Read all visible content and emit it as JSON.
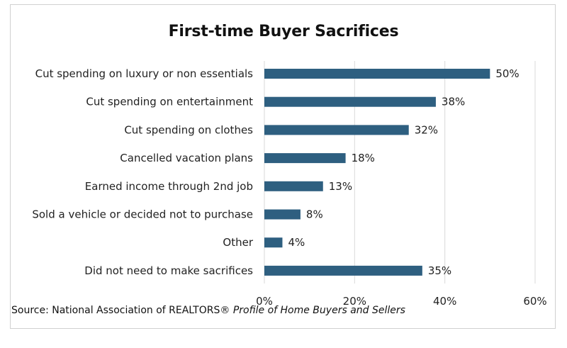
{
  "chart_data": {
    "type": "bar",
    "orientation": "horizontal",
    "title": "First-time Buyer Sacrifices",
    "categories": [
      "Cut spending on luxury or non essentials",
      "Cut spending on entertainment",
      "Cut spending on clothes",
      "Cancelled vacation plans",
      "Earned income through 2nd job",
      "Sold a vehicle or decided not to purchase",
      "Other",
      "Did not need to make sacrifices"
    ],
    "values": [
      50,
      38,
      32,
      18,
      13,
      8,
      4,
      35
    ],
    "value_labels": [
      "50%",
      "38%",
      "32%",
      "18%",
      "13%",
      "8%",
      "4%",
      "35%"
    ],
    "x_ticks": [
      0,
      20,
      40,
      60
    ],
    "x_tick_labels": [
      "0%",
      "20%",
      "40%",
      "60%"
    ],
    "xlim": [
      0,
      60
    ],
    "grid": "vertical",
    "bar_color": "#2e5f80",
    "gridline_color": "#d9d9d9"
  },
  "source": {
    "prefix": "Source: National Association of REALTORS® ",
    "publication": "Profile of Home Buyers and Sellers"
  }
}
